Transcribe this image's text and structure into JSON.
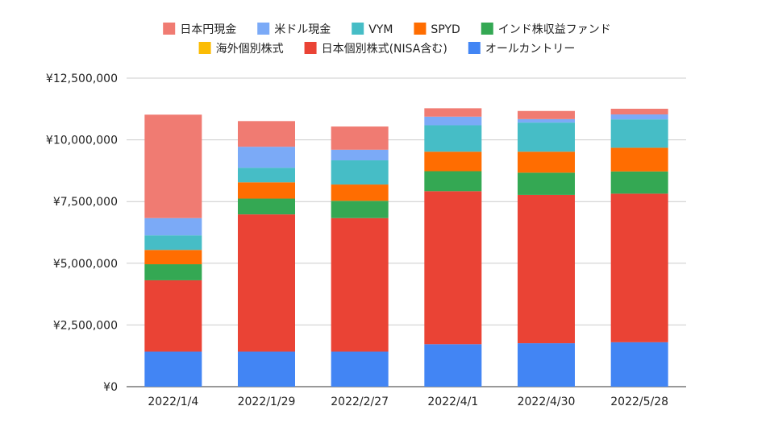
{
  "chart_data": {
    "type": "bar",
    "stacked": true,
    "title": "",
    "xlabel": "",
    "ylabel": "",
    "ylim": [
      0,
      12500000
    ],
    "yticks": [
      0,
      2500000,
      5000000,
      7500000,
      10000000,
      12500000
    ],
    "ytick_labels": [
      "¥0",
      "¥2,500,000",
      "¥5,000,000",
      "¥7,500,000",
      "¥10,000,000",
      "¥12,500,000"
    ],
    "grid": true,
    "legend_position": "top",
    "categories": [
      "2022/1/4",
      "2022/1/29",
      "2022/2/27",
      "2022/4/1",
      "2022/4/30",
      "2022/5/28"
    ],
    "series": [
      {
        "name": "オールカントリー",
        "color": "#4285f4",
        "values": [
          1420000,
          1420000,
          1420000,
          1720000,
          1760000,
          1800000
        ]
      },
      {
        "name": "日本個別株式(NISA含む)",
        "color": "#ea4335",
        "values": [
          2890000,
          5560000,
          5410000,
          6200000,
          6010000,
          6020000
        ]
      },
      {
        "name": "海外個別株式",
        "color": "#fbbc04",
        "values": [
          0,
          0,
          0,
          0,
          0,
          0
        ]
      },
      {
        "name": "インド株収益ファンド",
        "color": "#34a853",
        "values": [
          650000,
          640000,
          700000,
          810000,
          900000,
          900000
        ]
      },
      {
        "name": "SPYD",
        "color": "#ff6d01",
        "values": [
          580000,
          660000,
          660000,
          790000,
          850000,
          960000
        ]
      },
      {
        "name": "VYM",
        "color": "#46bdc6",
        "values": [
          590000,
          590000,
          980000,
          1070000,
          1180000,
          1150000
        ]
      },
      {
        "name": "米ドル現金",
        "color": "#7baaf7",
        "values": [
          700000,
          850000,
          430000,
          350000,
          140000,
          200000
        ]
      },
      {
        "name": "日本円現金",
        "color": "#f07b72",
        "values": [
          4190000,
          1040000,
          940000,
          340000,
          330000,
          230000
        ]
      }
    ],
    "legend_rows": [
      [
        "日本円現金",
        "米ドル現金",
        "VYM",
        "SPYD",
        "インド株収益ファンド"
      ],
      [
        "海外個別株式",
        "日本個別株式(NISA含む)",
        "オールカントリー"
      ]
    ]
  }
}
